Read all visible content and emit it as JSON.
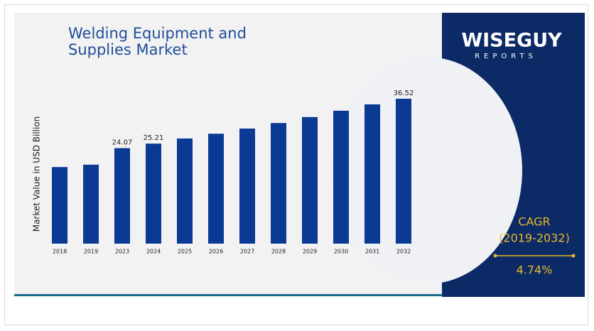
{
  "logo": {
    "name": "WISEGUY",
    "tagline": "REPORTS"
  },
  "chart_data": {
    "type": "bar",
    "title": "Welding Equipment and Supplies Market",
    "y_label": "Market Value in USD Billion",
    "categories": [
      "2018",
      "2019",
      "2023",
      "2024",
      "2025",
      "2026",
      "2027",
      "2028",
      "2029",
      "2030",
      "2031",
      "2032"
    ],
    "values": [
      19.3,
      19.9,
      24.07,
      25.21,
      26.5,
      27.7,
      29.0,
      30.4,
      31.9,
      33.5,
      35.1,
      36.52
    ],
    "value_labels": [
      null,
      null,
      "24.07",
      "25.21",
      null,
      null,
      null,
      null,
      null,
      null,
      null,
      "36.52"
    ],
    "color": "#0a3a93"
  },
  "cagr": {
    "label": "CAGR",
    "period": "(2019-2032)",
    "value": "4.74%"
  }
}
